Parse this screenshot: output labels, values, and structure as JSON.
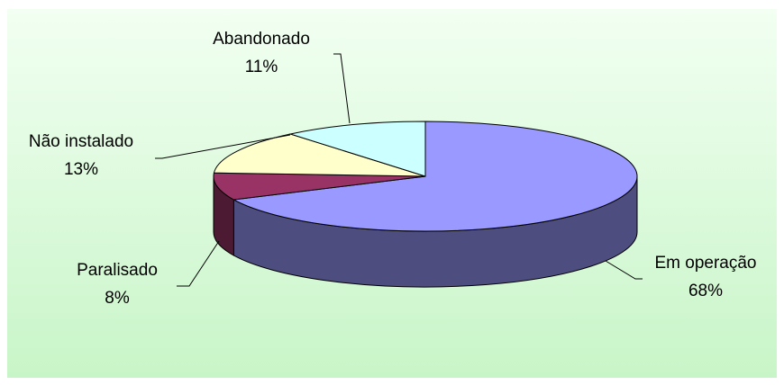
{
  "chart_data": {
    "type": "pie3d",
    "categories": [
      "Em operação",
      "Paralisado",
      "Não instalado",
      "Abandonado"
    ],
    "values": [
      68,
      8,
      13,
      11
    ],
    "value_labels": [
      "68%",
      "8%",
      "13%",
      "11%"
    ],
    "colors": [
      "#9999ff",
      "#993366",
      "#ffffcc",
      "#ccffff"
    ]
  }
}
